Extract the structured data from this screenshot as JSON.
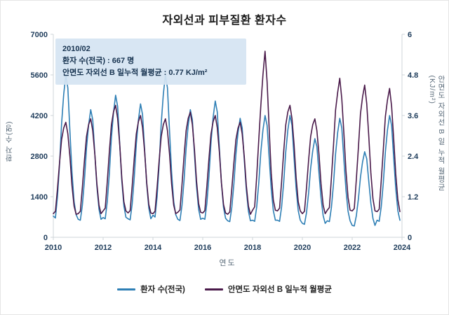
{
  "title": "자외선과 피부질환 환자수",
  "tooltip": {
    "date": "2010/02",
    "patients_line": "환자 수(전국) : 667 명",
    "uv_line": "안면도 자외선 B 일누적 월평균 : 0.77 KJ/m²"
  },
  "axes": {
    "y_left_label": "환자 수(명)",
    "y_right_label": "안면도 자외선 B 일 누적 월평균(KJ/m²)",
    "x_label": "연도",
    "y_left_ticks": [
      0,
      1400,
      2800,
      4200,
      5600,
      7000
    ],
    "y_right_ticks": [
      0,
      1.2,
      2.4,
      3.6,
      4.8,
      6
    ],
    "x_ticks": [
      2010,
      2012,
      2014,
      2016,
      2018,
      2020,
      2022,
      2024
    ]
  },
  "legend": [
    {
      "label": "환자 수(전국)",
      "color": "#2e7fb5"
    },
    {
      "label": "안면도 자외선 B 일누적 월평균",
      "color": "#4a1a4a"
    }
  ],
  "chart_data": {
    "type": "line",
    "title": "자외선과 피부질환 환자수",
    "xlabel": "연도",
    "x_range": [
      2010,
      2024
    ],
    "x_start_year": 2010,
    "x_step_months": 1,
    "y_left_range": [
      0,
      7000
    ],
    "y_right_range": [
      0,
      6
    ],
    "grid": false,
    "legend_position": "bottom",
    "series": [
      {
        "name": "환자 수(전국)",
        "axis": "left",
        "color": "#2e7fb5",
        "values": [
          730,
          667,
          1400,
          2520,
          3920,
          4930,
          5600,
          5150,
          3640,
          2240,
          1230,
          780,
          620,
          590,
          1100,
          1980,
          3080,
          3870,
          4400,
          4050,
          2860,
          1760,
          970,
          620,
          680,
          640,
          1230,
          2210,
          3430,
          4310,
          4900,
          4510,
          3190,
          1960,
          1080,
          690,
          640,
          600,
          1150,
          2070,
          3220,
          4050,
          4600,
          4230,
          2990,
          1840,
          1010,
          640,
          760,
          700,
          1400,
          2520,
          3920,
          4930,
          5600,
          5150,
          3640,
          2240,
          1230,
          780,
          620,
          580,
          1100,
          1980,
          3080,
          3870,
          4400,
          4050,
          2860,
          1760,
          970,
          620,
          660,
          620,
          1180,
          2120,
          3290,
          4140,
          4700,
          4320,
          3060,
          1880,
          1030,
          660,
          570,
          540,
          1030,
          1850,
          2870,
          3610,
          4100,
          3770,
          2670,
          1640,
          900,
          570,
          590,
          550,
          1050,
          1890,
          2940,
          3700,
          4200,
          3860,
          2730,
          1680,
          920,
          590,
          590,
          550,
          1050,
          1890,
          2940,
          3700,
          4200,
          3860,
          2730,
          1680,
          920,
          590,
          480,
          450,
          850,
          1530,
          2380,
          2990,
          3400,
          3130,
          2210,
          1360,
          750,
          480,
          570,
          540,
          1030,
          1850,
          2870,
          3610,
          4100,
          3770,
          2670,
          1640,
          900,
          570,
          410,
          390,
          740,
          1330,
          2070,
          2600,
          2950,
          2710,
          1920,
          1180,
          650,
          410,
          590,
          550,
          1050,
          1890,
          2940,
          3700,
          4200,
          3860,
          2730,
          1680,
          920,
          590
        ]
      },
      {
        "name": "안면도 자외선 B 일누적 월평균",
        "axis": "right",
        "color": "#4a1a4a",
        "values": [
          0.7,
          0.77,
          1.43,
          2.21,
          2.89,
          3.23,
          3.4,
          3.06,
          2.38,
          1.53,
          0.92,
          0.68,
          0.7,
          0.77,
          1.47,
          2.28,
          2.98,
          3.33,
          3.5,
          3.15,
          2.45,
          1.58,
          0.95,
          0.7,
          0.78,
          0.86,
          1.64,
          2.54,
          3.32,
          3.71,
          3.9,
          3.51,
          2.73,
          1.76,
          1.05,
          0.78,
          0.72,
          0.79,
          1.51,
          2.34,
          3.06,
          3.42,
          3.6,
          3.24,
          2.52,
          1.62,
          0.97,
          0.72,
          0.7,
          0.77,
          1.47,
          2.28,
          2.98,
          3.33,
          3.5,
          3.15,
          2.45,
          1.58,
          0.95,
          0.7,
          0.74,
          0.81,
          1.55,
          2.41,
          3.15,
          3.52,
          3.7,
          3.33,
          2.59,
          1.67,
          1.0,
          0.74,
          0.72,
          0.79,
          1.51,
          2.34,
          3.06,
          3.42,
          3.6,
          3.24,
          2.52,
          1.62,
          0.97,
          0.72,
          0.68,
          0.75,
          1.43,
          2.21,
          2.89,
          3.23,
          3.4,
          3.06,
          2.38,
          1.53,
          0.92,
          0.68,
          0.8,
          0.9,
          1.8,
          2.9,
          3.9,
          4.8,
          5.5,
          4.6,
          3.2,
          1.9,
          1.1,
          0.8,
          0.78,
          0.86,
          1.64,
          2.54,
          3.32,
          3.71,
          3.9,
          3.51,
          2.73,
          1.76,
          1.05,
          0.78,
          0.7,
          0.77,
          1.47,
          2.28,
          2.98,
          3.33,
          3.5,
          3.15,
          2.45,
          1.58,
          0.95,
          0.7,
          0.8,
          0.88,
          1.76,
          2.73,
          3.76,
          4.28,
          4.7,
          4.09,
          3.06,
          1.97,
          1.18,
          0.8,
          0.78,
          0.85,
          1.71,
          2.66,
          3.65,
          4.15,
          4.5,
          3.96,
          2.97,
          1.91,
          1.14,
          0.78,
          0.76,
          0.83,
          1.67,
          2.6,
          3.57,
          4.06,
          4.4,
          3.87,
          2.9,
          1.87,
          1.11,
          0.76
        ]
      }
    ]
  }
}
